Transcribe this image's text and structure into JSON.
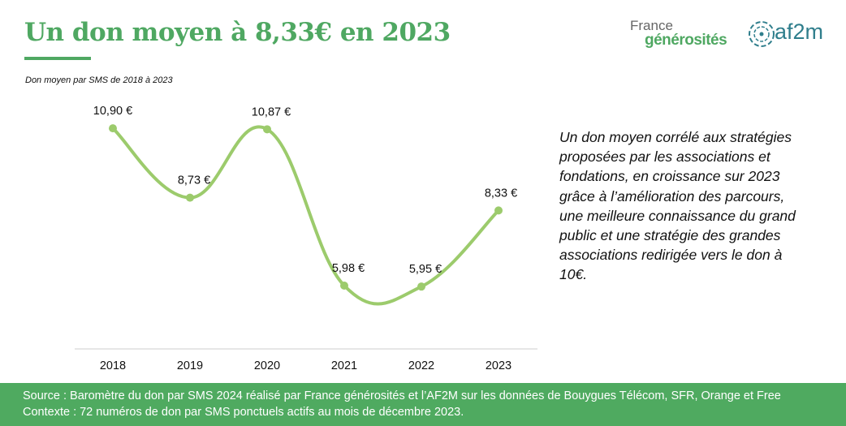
{
  "header": {
    "title": "Un don moyen à 8,33€ en 2023",
    "subtitle": "Don moyen par SMS de 2018 à 2023"
  },
  "logos": {
    "france_generosites": [
      "France",
      "générosités"
    ],
    "af2m": "af2m"
  },
  "chart_data": {
    "type": "line",
    "categories": [
      "2018",
      "2019",
      "2020",
      "2021",
      "2022",
      "2023"
    ],
    "values": [
      10.9,
      8.73,
      10.87,
      5.98,
      5.95,
      8.33
    ],
    "data_labels": [
      "10,90 €",
      "8,73 €",
      "10,87 €",
      "5,98 €",
      "5,95 €",
      "8,33 €"
    ],
    "ylim": [
      4,
      12
    ],
    "grid": false,
    "smooth": true,
    "color": "#9ccb6c"
  },
  "description": "Un don moyen corrélé aux stratégies proposées par les associations et fondations, en croissance sur 2023 grâce à l’amélioration des parcours, une meilleure connaissance du grand public et une stratégie des grandes associations redirigée vers le don à 10€.",
  "footer": {
    "source": "Source : Baromètre du don par SMS 2024 réalisé par France générosités et l’AF2M sur les données de Bouygues Télécom, SFR, Orange et Free",
    "context": "Contexte : 72 numéros de don par SMS ponctuels actifs au mois de décembre 2023."
  }
}
